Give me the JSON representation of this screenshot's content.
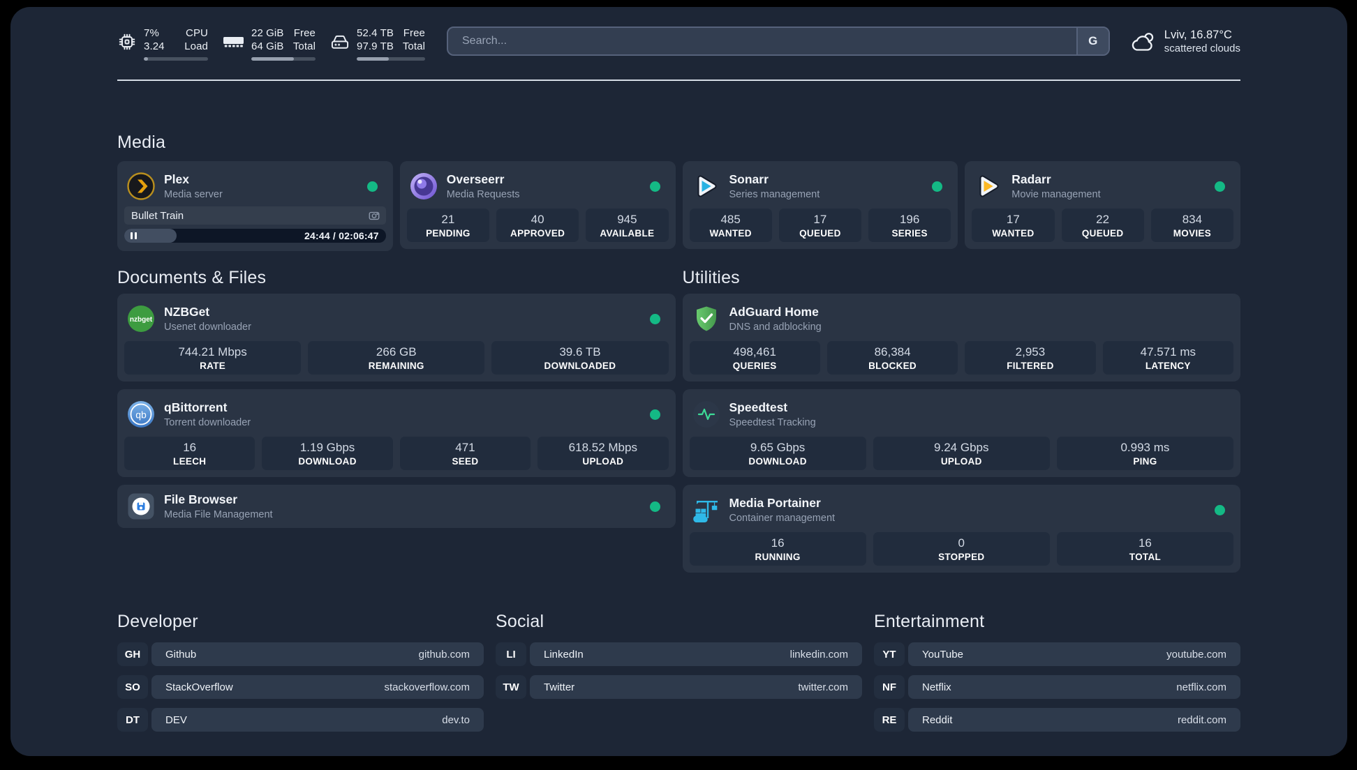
{
  "topbar": {
    "resources": [
      {
        "icon": "cpu-icon",
        "value1": "7%",
        "value2": "3.24",
        "label1": "CPU",
        "label2": "Load",
        "percent": 7
      },
      {
        "icon": "memory-icon",
        "value1": "22 GiB",
        "value2": "64 GiB",
        "label1": "Free",
        "label2": "Total",
        "percent": 66
      },
      {
        "icon": "disk-icon",
        "value1": "52.4 TB",
        "value2": "97.9 TB",
        "label1": "Free",
        "label2": "Total",
        "percent": 47
      }
    ],
    "search": {
      "placeholder": "Search...",
      "provider": "G"
    },
    "weather": {
      "location": "Lviv, 16.87°C",
      "condition": "scattered clouds"
    }
  },
  "sections": {
    "media": {
      "title": "Media"
    },
    "documents": {
      "title": "Documents & Files"
    },
    "utilities": {
      "title": "Utilities"
    }
  },
  "services": {
    "plex": {
      "title": "Plex",
      "subtitle": "Media server",
      "status": "online",
      "now_playing": {
        "title": "Bullet Train",
        "time": "24:44 / 02:06:47",
        "progress_percent": 20
      }
    },
    "overseerr": {
      "title": "Overseerr",
      "subtitle": "Media Requests",
      "status": "online",
      "stats": [
        {
          "value": "21",
          "label": "PENDING"
        },
        {
          "value": "40",
          "label": "APPROVED"
        },
        {
          "value": "945",
          "label": "AVAILABLE"
        }
      ]
    },
    "sonarr": {
      "title": "Sonarr",
      "subtitle": "Series management",
      "status": "online",
      "stats": [
        {
          "value": "485",
          "label": "WANTED"
        },
        {
          "value": "17",
          "label": "QUEUED"
        },
        {
          "value": "196",
          "label": "SERIES"
        }
      ]
    },
    "radarr": {
      "title": "Radarr",
      "subtitle": "Movie management",
      "status": "online",
      "stats": [
        {
          "value": "17",
          "label": "WANTED"
        },
        {
          "value": "22",
          "label": "QUEUED"
        },
        {
          "value": "834",
          "label": "MOVIES"
        }
      ]
    },
    "nzbget": {
      "title": "NZBGet",
      "subtitle": "Usenet downloader",
      "status": "online",
      "stats": [
        {
          "value": "744.21 Mbps",
          "label": "RATE"
        },
        {
          "value": "266 GB",
          "label": "REMAINING"
        },
        {
          "value": "39.6 TB",
          "label": "DOWNLOADED"
        }
      ]
    },
    "qbittorrent": {
      "title": "qBittorrent",
      "subtitle": "Torrent downloader",
      "status": "online",
      "stats": [
        {
          "value": "16",
          "label": "LEECH"
        },
        {
          "value": "1.19 Gbps",
          "label": "DOWNLOAD"
        },
        {
          "value": "471",
          "label": "SEED"
        },
        {
          "value": "618.52 Mbps",
          "label": "UPLOAD"
        }
      ]
    },
    "filebrowser": {
      "title": "File Browser",
      "subtitle": "Media File Management",
      "status": "online"
    },
    "adguard": {
      "title": "AdGuard Home",
      "subtitle": "DNS and adblocking",
      "stats": [
        {
          "value": "498,461",
          "label": "QUERIES"
        },
        {
          "value": "86,384",
          "label": "BLOCKED"
        },
        {
          "value": "2,953",
          "label": "FILTERED"
        },
        {
          "value": "47.571 ms",
          "label": "LATENCY"
        }
      ]
    },
    "speedtest": {
      "title": "Speedtest",
      "subtitle": "Speedtest Tracking",
      "stats": [
        {
          "value": "9.65 Gbps",
          "label": "DOWNLOAD"
        },
        {
          "value": "9.24 Gbps",
          "label": "UPLOAD"
        },
        {
          "value": "0.993 ms",
          "label": "PING"
        }
      ]
    },
    "portainer": {
      "title": "Media Portainer",
      "subtitle": "Container management",
      "status": "online",
      "stats": [
        {
          "value": "16",
          "label": "RUNNING"
        },
        {
          "value": "0",
          "label": "STOPPED"
        },
        {
          "value": "16",
          "label": "TOTAL"
        }
      ]
    }
  },
  "bookmarks": {
    "developer": {
      "title": "Developer",
      "links": [
        {
          "abbr": "GH",
          "name": "Github",
          "url": "github.com"
        },
        {
          "abbr": "SO",
          "name": "StackOverflow",
          "url": "stackoverflow.com"
        },
        {
          "abbr": "DT",
          "name": "DEV",
          "url": "dev.to"
        }
      ]
    },
    "social": {
      "title": "Social",
      "links": [
        {
          "abbr": "LI",
          "name": "LinkedIn",
          "url": "linkedin.com"
        },
        {
          "abbr": "TW",
          "name": "Twitter",
          "url": "twitter.com"
        }
      ]
    },
    "entertainment": {
      "title": "Entertainment",
      "links": [
        {
          "abbr": "YT",
          "name": "YouTube",
          "url": "youtube.com"
        },
        {
          "abbr": "NF",
          "name": "Netflix",
          "url": "netflix.com"
        },
        {
          "abbr": "RE",
          "name": "Reddit",
          "url": "reddit.com"
        }
      ]
    }
  },
  "colors": {
    "status_online": "#14b985",
    "accent_plex": "#e5a00d",
    "accent_sonarr": "#28b2e3",
    "accent_radarr": "#fdb924",
    "accent_portainer": "#2fb9e8",
    "accent_adguard": "#5cb85f",
    "accent_speedtest": "#3ddc97"
  }
}
